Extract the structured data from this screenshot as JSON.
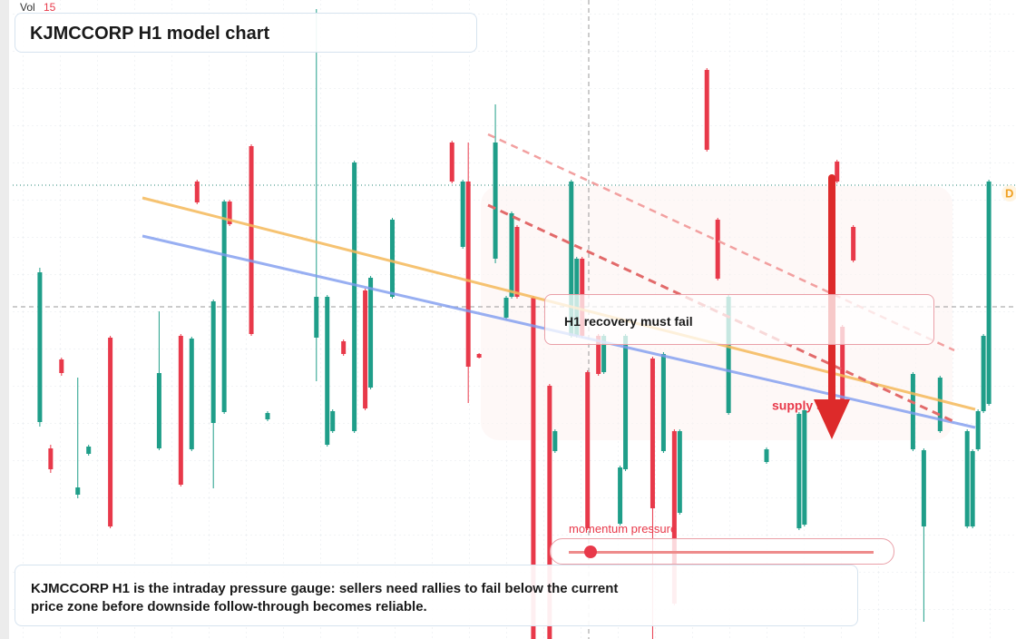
{
  "chart_data": {
    "type": "candlestick",
    "title": "KJMCCORP H1 model chart",
    "volume_label": "Vol",
    "volume_value": 15,
    "annotation": "H1 recovery must fail",
    "zone_label": "supply shelf",
    "gauge_label": "momentum pressure",
    "caption": "KJMCCORP H1 is the intraday pressure gauge: sellers need rallies to fail below the current price zone before downside follow-through becomes reliable.",
    "badge": "D",
    "up_color": "#1f9e89",
    "down_color": "#e8394a",
    "xlim": [
      -5,
      180
    ],
    "ylim": [
      0,
      704
    ],
    "x": [
      0,
      2,
      4,
      7,
      9,
      13,
      22,
      26,
      28,
      29,
      32,
      34,
      35,
      39,
      42,
      51,
      53,
      54,
      56,
      58,
      60,
      61,
      65,
      76,
      78,
      79,
      81,
      84,
      86,
      87,
      88,
      91,
      94,
      95,
      98,
      99,
      100,
      101,
      103,
      104,
      107,
      108,
      113,
      115,
      117,
      118,
      123,
      125,
      127,
      134,
      140,
      141,
      147,
      148,
      150,
      161,
      163,
      166,
      171,
      172,
      173,
      174,
      175
    ],
    "open": [
      239,
      210,
      308,
      159,
      204,
      332,
      210,
      334,
      209,
      504,
      238,
      250,
      482,
      543,
      242,
      332,
      214,
      229,
      328,
      229,
      384,
      277,
      377,
      547,
      432,
      504,
      314,
      419,
      354,
      377,
      454,
      376,
      279,
      207,
      334,
      334,
      419,
      294,
      334,
      294,
      127,
      187,
      309,
      207,
      229,
      139,
      627,
      462,
      249,
      195,
      122,
      126,
      526,
      344,
      454,
      209,
      124,
      229,
      124,
      124,
      209,
      251,
      259
    ],
    "high": [
      409,
      214,
      310,
      288,
      214,
      334,
      361,
      336,
      333,
      506,
      374,
      484,
      484,
      545,
      251,
      694,
      379,
      253,
      330,
      527,
      386,
      400,
      464,
      549,
      506,
      547,
      315,
      589,
      378,
      471,
      456,
      378,
      281,
      231,
      506,
      421,
      421,
      296,
      336,
      336,
      191,
      336,
      311,
      316,
      231,
      231,
      629,
      464,
      379,
      211,
      250,
      254,
      528,
      346,
      456,
      294,
      210,
      290,
      231,
      209,
      253,
      336,
      506
    ],
    "low": [
      234,
      183,
      290,
      155,
      202,
      122,
      208,
      168,
      207,
      479,
      166,
      248,
      455,
      334,
      240,
      284,
      212,
      227,
      312,
      227,
      252,
      275,
      375,
      502,
      430,
      260,
      309,
      414,
      352,
      375,
      375,
      0,
      0,
      205,
      332,
      332,
      332,
      120,
      290,
      292,
      125,
      185,
      0,
      205,
      37,
      137,
      537,
      395,
      247,
      193,
      120,
      124,
      502,
      262,
      415,
      207,
      19,
      227,
      122,
      122,
      207,
      249,
      257
    ],
    "close": [
      404,
      187,
      293,
      167,
      212,
      124,
      293,
      170,
      331,
      481,
      372,
      482,
      457,
      336,
      249,
      377,
      377,
      251,
      314,
      525,
      254,
      398,
      462,
      504,
      504,
      300,
      310,
      547,
      376,
      469,
      377,
      0,
      0,
      229,
      504,
      419,
      334,
      122,
      292,
      334,
      189,
      334,
      144,
      314,
      39,
      229,
      539,
      397,
      377,
      209,
      248,
      252,
      504,
      264,
      417,
      292,
      208,
      288,
      229,
      207,
      251,
      334,
      504
    ]
  }
}
